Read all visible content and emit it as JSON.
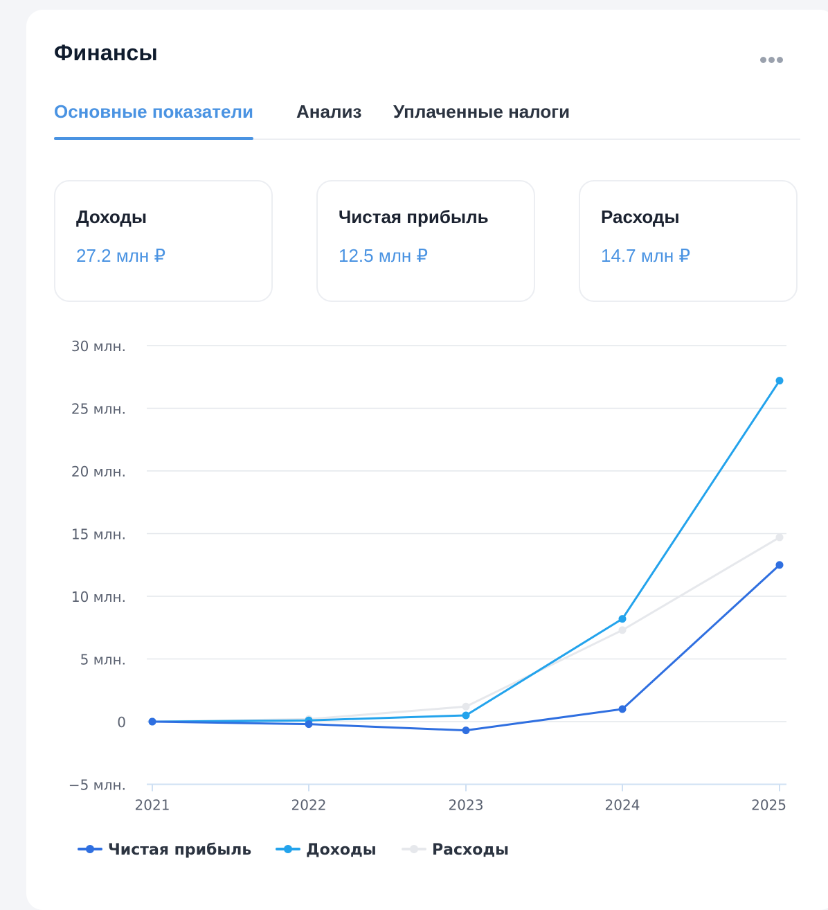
{
  "header": {
    "title": "Финансы",
    "more_icon": "more-dots-icon"
  },
  "tabs": [
    {
      "label": "Основные показатели",
      "active": true
    },
    {
      "label": "Анализ",
      "active": false
    },
    {
      "label": "Уплаченные налоги",
      "active": false
    }
  ],
  "kpis": [
    {
      "label": "Доходы",
      "value": "27.2 млн ₽"
    },
    {
      "label": "Чистая прибыль",
      "value": "12.5 млн ₽"
    },
    {
      "label": "Расходы",
      "value": "14.7 млн ₽"
    }
  ],
  "colors": {
    "accent": "#4a93e2",
    "net_profit": "#2f6fe0",
    "income": "#23a3ec",
    "expenses": "#e6e8ec"
  },
  "chart_data": {
    "type": "line",
    "x": [
      "2021",
      "2022",
      "2023",
      "2024",
      "2025"
    ],
    "y_ticks": [
      "30 млн.",
      "25 млн.",
      "20 млн.",
      "15 млн.",
      "10 млн.",
      "5 млн.",
      "0",
      "−5 млн."
    ],
    "y_tick_values": [
      30,
      25,
      20,
      15,
      10,
      5,
      0,
      -5
    ],
    "ylim": [
      -5,
      30
    ],
    "grid": true,
    "legend_position": "bottom-left",
    "series": [
      {
        "name": "Чистая прибыль",
        "color": "#2f6fe0",
        "values": [
          0,
          -0.2,
          -0.7,
          1.0,
          12.5
        ]
      },
      {
        "name": "Доходы",
        "color": "#23a3ec",
        "values": [
          0,
          0.1,
          0.5,
          8.2,
          27.2
        ]
      },
      {
        "name": "Расходы",
        "color": "#e6e8ec",
        "values": [
          0,
          0.2,
          1.2,
          7.3,
          14.7
        ]
      }
    ]
  }
}
